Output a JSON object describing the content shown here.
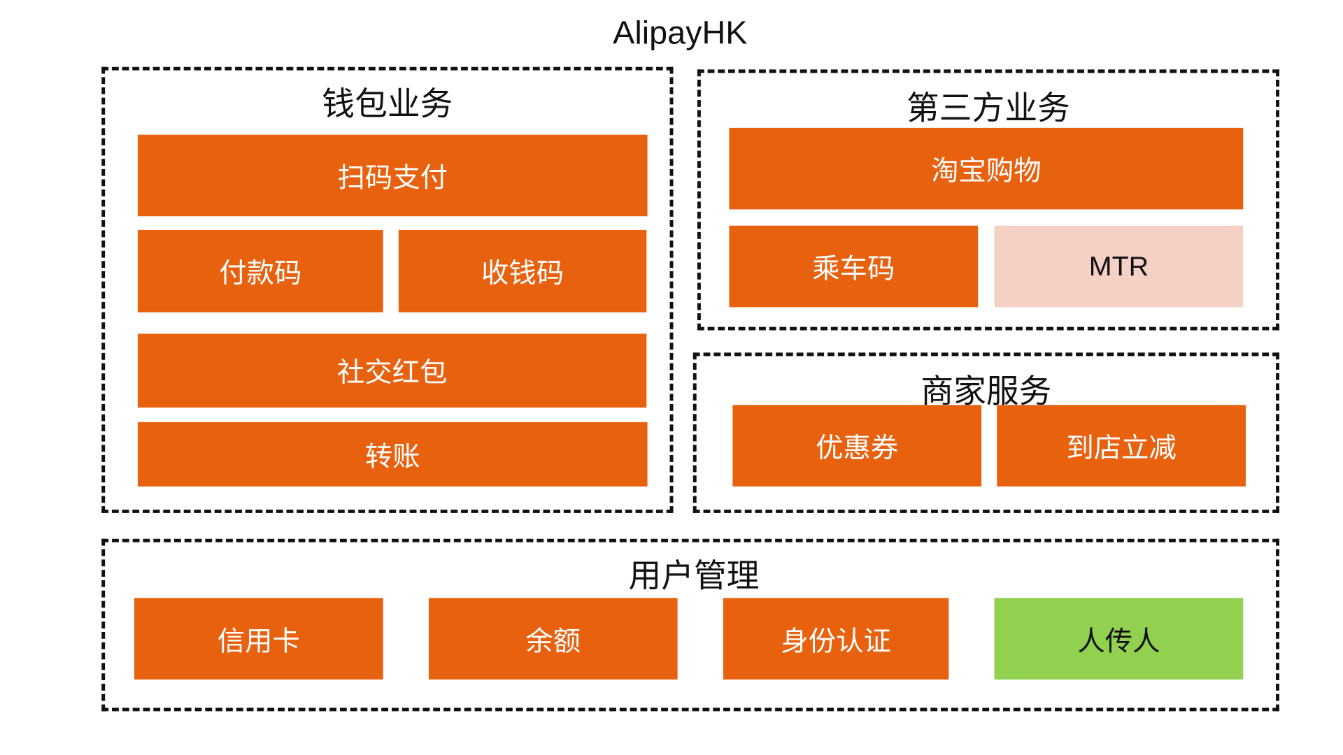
{
  "title": "AlipayHK",
  "colors": {
    "block": "#e8610f",
    "highlight_pink": "#f5d0c5",
    "highlight_green": "#92d050",
    "border": "#111111"
  },
  "groups": {
    "wallet": {
      "title": "钱包业务",
      "items": [
        "扫码支付",
        "付款码",
        "收钱码",
        "社交红包",
        "转账"
      ]
    },
    "third_party": {
      "title": "第三方业务",
      "items": [
        "淘宝购物",
        "乘车码",
        "MTR"
      ]
    },
    "merchant": {
      "title": "商家服务",
      "items": [
        "优惠券",
        "到店立减"
      ]
    },
    "user": {
      "title": "用户管理",
      "items": [
        "信用卡",
        "余额",
        "身份认证",
        "人传人"
      ]
    }
  }
}
